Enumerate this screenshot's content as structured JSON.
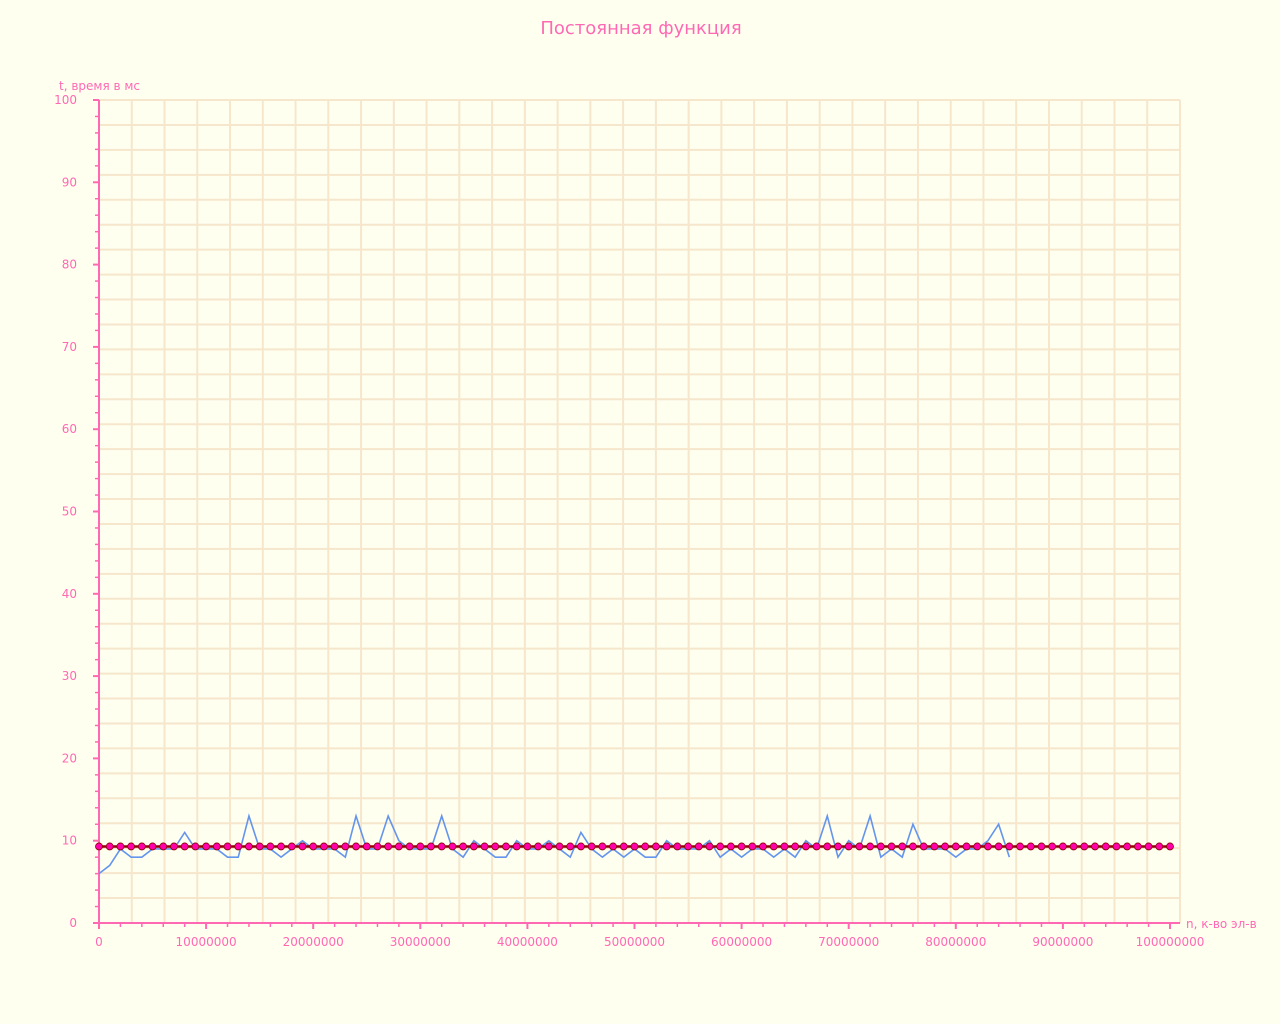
{
  "colors": {
    "background": "#fffff0",
    "grid": "#f5e6cc",
    "axis": "#ff69b4",
    "text": "#ff69b4",
    "measured": "#6495ed",
    "average_line": "#8b0000",
    "average_marker": "#ff00aa"
  },
  "chart_data": {
    "type": "line",
    "title": "Постоянная функция",
    "xlabel": "n, к-во эл-в",
    "ylabel": "t, время в мс",
    "xlim": [
      0,
      100000000
    ],
    "ylim": [
      0,
      100
    ],
    "grid": true,
    "x_ticks": [
      0,
      10000000,
      20000000,
      30000000,
      40000000,
      50000000,
      60000000,
      70000000,
      80000000,
      90000000,
      100000000
    ],
    "x_tick_labels": [
      "0",
      "10000000",
      "20000000",
      "30000000",
      "40000000",
      "50000000",
      "60000000",
      "70000000",
      "80000000",
      "90000000",
      "100000000"
    ],
    "y_ticks": [
      0,
      10,
      20,
      30,
      40,
      50,
      60,
      70,
      80,
      90,
      100
    ],
    "y_tick_labels": [
      "0",
      "10",
      "20",
      "30",
      "40",
      "50",
      "60",
      "70",
      "80",
      "90",
      "100"
    ],
    "series": [
      {
        "x": [
          0,
          1000000,
          2000000,
          3000000,
          4000000,
          5000000,
          6000000,
          7000000,
          8000000,
          9000000,
          10000000,
          11000000,
          12000000,
          13000000,
          14000000,
          15000000,
          16000000,
          17000000,
          18000000,
          19000000,
          20000000,
          21000000,
          22000000,
          23000000,
          24000000,
          25000000,
          26000000,
          27000000,
          28000000,
          29000000,
          30000000,
          31000000,
          32000000,
          33000000,
          34000000,
          35000000,
          36000000,
          37000000,
          38000000,
          39000000,
          40000000,
          41000000,
          42000000,
          43000000,
          44000000,
          45000000,
          46000000,
          47000000,
          48000000,
          49000000,
          50000000,
          51000000,
          52000000,
          53000000,
          54000000,
          55000000,
          56000000,
          57000000,
          58000000,
          59000000,
          60000000,
          61000000,
          62000000,
          63000000,
          64000000,
          65000000,
          66000000,
          67000000,
          68000000,
          69000000,
          70000000,
          71000000,
          72000000,
          73000000,
          74000000,
          75000000,
          76000000,
          77000000,
          78000000,
          79000000,
          80000000,
          81000000,
          82000000,
          83000000,
          84000000,
          85000000
        ],
        "y": [
          6,
          7,
          9,
          8,
          8,
          9,
          9,
          9,
          11,
          9,
          9,
          9,
          8,
          8,
          13,
          9,
          9,
          8,
          9,
          10,
          9,
          9,
          9,
          8,
          13,
          9,
          9,
          13,
          10,
          9,
          9,
          9,
          13,
          9,
          8,
          10,
          9,
          8,
          8,
          10,
          9,
          9,
          10,
          9,
          8,
          11,
          9,
          8,
          9,
          8,
          9,
          8,
          8,
          10,
          9,
          9,
          9,
          10,
          8,
          9,
          8,
          9,
          9,
          8,
          9,
          8,
          10,
          9,
          13,
          8,
          10,
          9,
          13,
          8,
          9,
          8,
          12,
          9,
          9,
          9,
          8,
          9,
          9,
          10,
          12,
          8
        ]
      },
      {
        "x": [
          0,
          1000000,
          2000000,
          3000000,
          4000000,
          5000000,
          6000000,
          7000000,
          8000000,
          9000000,
          10000000,
          11000000,
          12000000,
          13000000,
          14000000,
          15000000,
          16000000,
          17000000,
          18000000,
          19000000,
          20000000,
          21000000,
          22000000,
          23000000,
          24000000,
          25000000,
          26000000,
          27000000,
          28000000,
          29000000,
          30000000,
          31000000,
          32000000,
          33000000,
          34000000,
          35000000,
          36000000,
          37000000,
          38000000,
          39000000,
          40000000,
          41000000,
          42000000,
          43000000,
          44000000,
          45000000,
          46000000,
          47000000,
          48000000,
          49000000,
          50000000,
          51000000,
          52000000,
          53000000,
          54000000,
          55000000,
          56000000,
          57000000,
          58000000,
          59000000,
          60000000,
          61000000,
          62000000,
          63000000,
          64000000,
          65000000,
          66000000,
          67000000,
          68000000,
          69000000,
          70000000,
          71000000,
          72000000,
          73000000,
          74000000,
          75000000,
          76000000,
          77000000,
          78000000,
          79000000,
          80000000,
          81000000,
          82000000,
          83000000,
          84000000,
          85000000,
          86000000,
          87000000,
          88000000,
          89000000,
          90000000,
          91000000,
          92000000,
          93000000,
          94000000,
          95000000,
          96000000,
          97000000,
          98000000,
          99000000,
          100000000
        ],
        "y": [
          9.3,
          9.3,
          9.3,
          9.3,
          9.3,
          9.3,
          9.3,
          9.3,
          9.3,
          9.3,
          9.3,
          9.3,
          9.3,
          9.3,
          9.3,
          9.3,
          9.3,
          9.3,
          9.3,
          9.3,
          9.3,
          9.3,
          9.3,
          9.3,
          9.3,
          9.3,
          9.3,
          9.3,
          9.3,
          9.3,
          9.3,
          9.3,
          9.3,
          9.3,
          9.3,
          9.3,
          9.3,
          9.3,
          9.3,
          9.3,
          9.3,
          9.3,
          9.3,
          9.3,
          9.3,
          9.3,
          9.3,
          9.3,
          9.3,
          9.3,
          9.3,
          9.3,
          9.3,
          9.3,
          9.3,
          9.3,
          9.3,
          9.3,
          9.3,
          9.3,
          9.3,
          9.3,
          9.3,
          9.3,
          9.3,
          9.3,
          9.3,
          9.3,
          9.3,
          9.3,
          9.3,
          9.3,
          9.3,
          9.3,
          9.3,
          9.3,
          9.3,
          9.3,
          9.3,
          9.3,
          9.3,
          9.3,
          9.3,
          9.3,
          9.3,
          9.3,
          9.3,
          9.3,
          9.3,
          9.3,
          9.3,
          9.3,
          9.3,
          9.3,
          9.3,
          9.3,
          9.3,
          9.3,
          9.3,
          9.3,
          9.3
        ]
      }
    ]
  }
}
